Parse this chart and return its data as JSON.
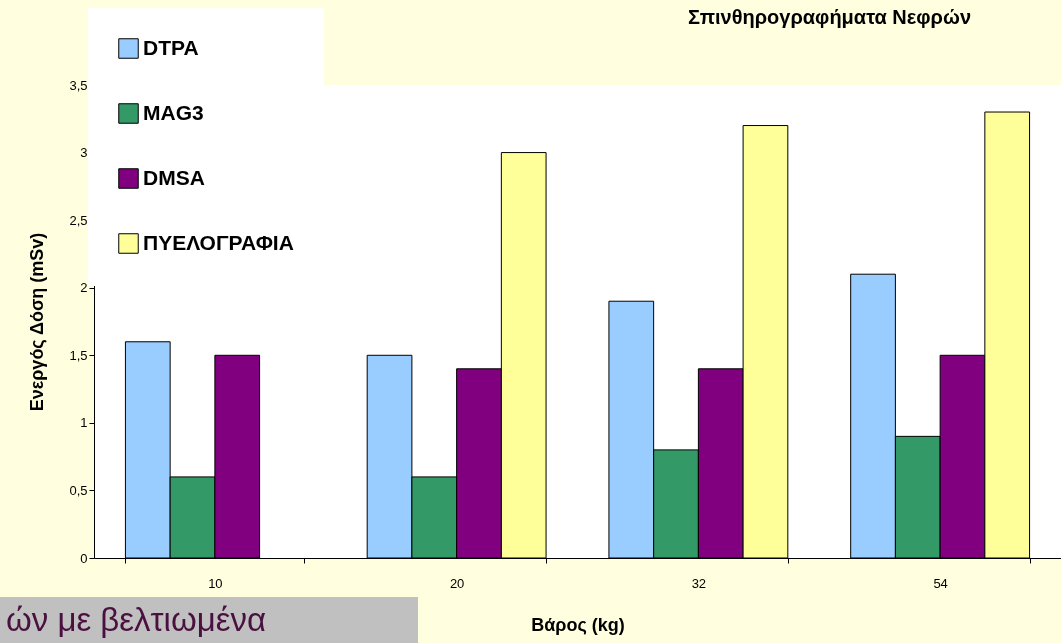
{
  "chart_data": {
    "type": "bar",
    "title": "Σπινθηρογραφήματα Νεφρών",
    "xlabel": "Βάρος (kg)",
    "ylabel": "Ενεργός Δόση (mSv)",
    "categories": [
      "10",
      "20",
      "32",
      "54"
    ],
    "series": [
      {
        "name": "DTPA",
        "color": "#99ccff",
        "values": [
          1.6,
          1.5,
          1.9,
          2.1
        ]
      },
      {
        "name": "MAG3",
        "color": "#339966",
        "values": [
          0.6,
          0.6,
          0.8,
          0.9
        ]
      },
      {
        "name": "DMSA",
        "color": "#800080",
        "values": [
          1.5,
          1.4,
          1.4,
          1.5
        ]
      },
      {
        "name": "ΠΥΕΛΟΓΡΑΦΙΑ",
        "color": "#ffff99",
        "values": [
          null,
          3.0,
          3.2,
          3.3
        ]
      }
    ],
    "ylim": [
      0,
      3.5
    ],
    "yticks": [
      0,
      {
        "value": 0.5,
        "label": "0,5"
      },
      1,
      {
        "value": 1.5,
        "label": "1,5"
      },
      2,
      {
        "value": 2.5,
        "label": "2,5"
      },
      3,
      {
        "value": 3.5,
        "label": "3,5"
      }
    ],
    "grid": false,
    "legend": "top left",
    "annotations": [
      "ών με βελτιωμένα"
    ]
  }
}
